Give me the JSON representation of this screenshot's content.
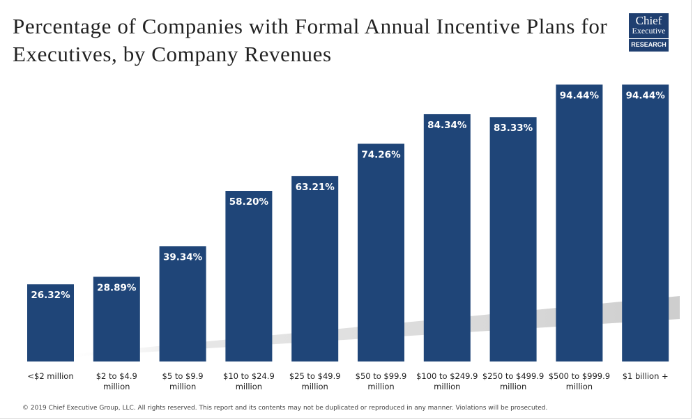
{
  "logo": {
    "line1": "Chief",
    "line2": "Executive",
    "line3": "RESEARCH"
  },
  "footer": "© 2019 Chief Executive Group, LLC. All rights reserved. This report and its contents may not be duplicated or reproduced in any manner. Violations will be prosecuted.",
  "colors": {
    "bar": "#1f4578",
    "shadow": "#cfcfcf",
    "label_text": "#ffffff"
  },
  "chart_data": {
    "type": "bar",
    "title": "Percentage of Companies with Formal Annual Incentive Plans for Executives, by Company Revenues",
    "xlabel": "",
    "ylabel": "",
    "ylim": [
      0,
      100
    ],
    "grid": false,
    "categories": [
      [
        "<$2 million"
      ],
      [
        "$2 to $4.9",
        "million"
      ],
      [
        "$5 to $9.9",
        "million"
      ],
      [
        "$10 to $24.9",
        "million"
      ],
      [
        "$25 to $49.9",
        "million"
      ],
      [
        "$50 to $99.9",
        "million"
      ],
      [
        "$100 to $249.9",
        "million"
      ],
      [
        "$250 to $499.9",
        "million"
      ],
      [
        "$500 to $999.9",
        "million"
      ],
      [
        "$1 billion +"
      ]
    ],
    "values": [
      26.32,
      28.89,
      39.34,
      58.2,
      63.21,
      74.26,
      84.34,
      83.33,
      94.44,
      94.44
    ],
    "value_labels": [
      "26.32%",
      "28.89%",
      "39.34%",
      "58.20%",
      "63.21%",
      "74.26%",
      "84.34%",
      "83.33%",
      "94.44%",
      "94.44%"
    ]
  }
}
